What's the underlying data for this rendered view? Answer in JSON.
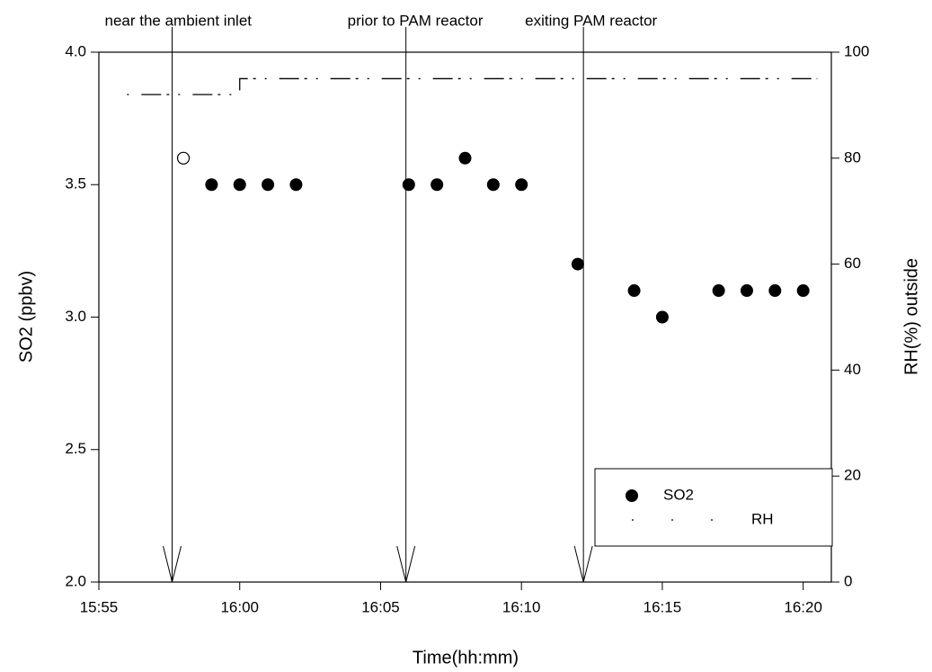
{
  "chart_data": {
    "type": "scatter",
    "x_label": "Time(hh:mm)",
    "y_label": "SO2 (ppbv)",
    "y2_label": "RH(%) outside",
    "xlim": [
      955,
      981
    ],
    "xticks": [
      {
        "value": 955,
        "label": "15:55"
      },
      {
        "value": 960,
        "label": "16:00"
      },
      {
        "value": 965,
        "label": "16:05"
      },
      {
        "value": 970,
        "label": "16:10"
      },
      {
        "value": 975,
        "label": "16:15"
      },
      {
        "value": 980,
        "label": "16:20"
      }
    ],
    "ylim": [
      2.0,
      4.0
    ],
    "yticks": [
      {
        "value": 2.0,
        "label": "2.0"
      },
      {
        "value": 2.5,
        "label": "2.5"
      },
      {
        "value": 3.0,
        "label": "3.0"
      },
      {
        "value": 3.5,
        "label": "3.5"
      },
      {
        "value": 4.0,
        "label": "4.0"
      }
    ],
    "y2lim": [
      0,
      100
    ],
    "y2ticks": [
      0,
      20,
      40,
      60,
      80,
      100
    ],
    "legend": "lower right",
    "series": [
      {
        "name": "SO2",
        "color": "#000000",
        "marker": "circle",
        "x": [
          959,
          960,
          961,
          962,
          966,
          967,
          968,
          969,
          970,
          972,
          974,
          975,
          977,
          978,
          979,
          980
        ],
        "values": [
          3.5,
          3.5,
          3.5,
          3.5,
          3.5,
          3.5,
          3.6,
          3.5,
          3.5,
          3.2,
          3.1,
          3.0,
          3.1,
          3.1,
          3.1,
          3.1
        ]
      },
      {
        "name": "RH",
        "color": "#000000",
        "marker": "dash-dot",
        "axis": "y2",
        "x": [
          956,
          960,
          960,
          980.5
        ],
        "values": [
          92,
          92,
          95,
          95
        ]
      }
    ],
    "open_points": {
      "x": [
        958
      ],
      "values": [
        3.6
      ]
    },
    "annotations": [
      {
        "text": "near the ambient inlet",
        "x": 957.6
      },
      {
        "text": "prior to PAM reactor",
        "x": 965.9
      },
      {
        "text": "exiting PAM reactor",
        "x": 972.2
      }
    ]
  }
}
